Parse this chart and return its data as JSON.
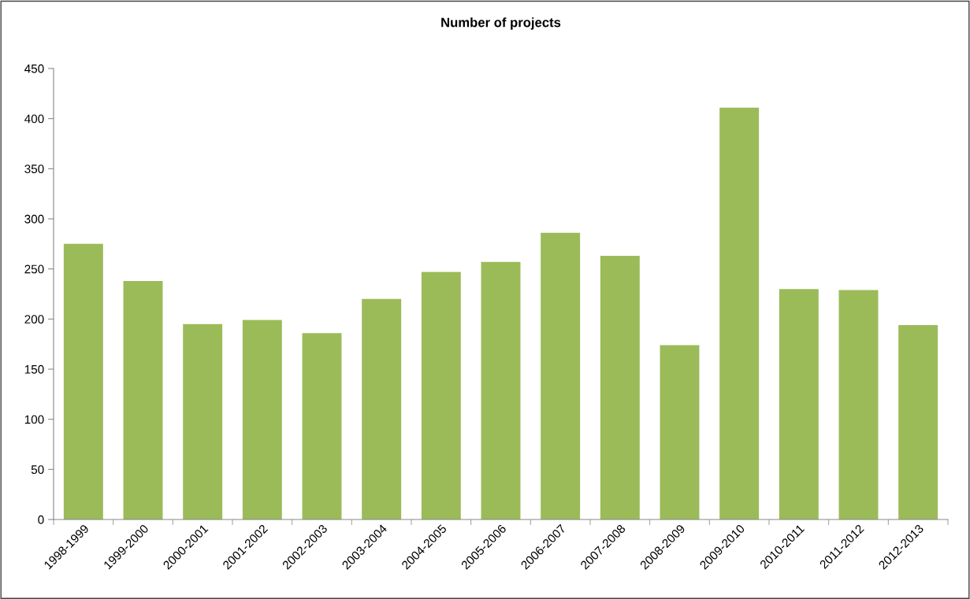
{
  "chart_data": {
    "type": "bar",
    "title": "Number of projects",
    "categories": [
      "1998-1999",
      "1999-2000",
      "2000-2001",
      "2001-2002",
      "2002-2003",
      "2003-2004",
      "2004-2005",
      "2005-2006",
      "2006-2007",
      "2007-2008",
      "2008-2009",
      "2009-2010",
      "2010-2011",
      "2011-2012",
      "2012-2013"
    ],
    "values": [
      275,
      238,
      195,
      199,
      186,
      220,
      247,
      257,
      286,
      263,
      174,
      411,
      230,
      229,
      194
    ],
    "color": "#9bbb59",
    "ylim": [
      0,
      450
    ],
    "yticks": [
      0,
      50,
      100,
      150,
      200,
      250,
      300,
      350,
      400,
      450
    ],
    "grid": false,
    "legend": false
  }
}
